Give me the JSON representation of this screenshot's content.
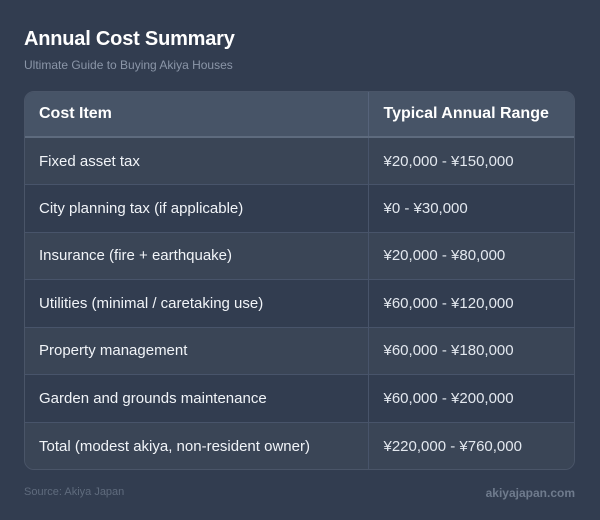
{
  "header": {
    "title": "Annual Cost Summary",
    "subtitle": "Ultimate Guide to Buying Akiya Houses"
  },
  "table": {
    "columns": [
      "Cost Item",
      "Typical Annual Range"
    ],
    "rows": [
      {
        "item": "Fixed asset tax",
        "range": "¥20,000 - ¥150,000"
      },
      {
        "item": "City planning tax (if applicable)",
        "range": "¥0 - ¥30,000"
      },
      {
        "item": "Insurance (fire + earthquake)",
        "range": "¥20,000 - ¥80,000"
      },
      {
        "item": "Utilities (minimal / caretaking use)",
        "range": "¥60,000 - ¥120,000"
      },
      {
        "item": "Property management",
        "range": "¥60,000 - ¥180,000"
      },
      {
        "item": "Garden and grounds maintenance",
        "range": "¥60,000 - ¥200,000"
      },
      {
        "item": "Total (modest akiya, non-resident owner)",
        "range": "¥220,000 - ¥760,000"
      }
    ]
  },
  "footer": {
    "source": "Source: Akiya Japan",
    "site": "akiyajapan.com"
  },
  "colors": {
    "background": "#323d50",
    "header_row": "#475467",
    "row_odd": "#3a4556",
    "row_even": "#323d50"
  }
}
